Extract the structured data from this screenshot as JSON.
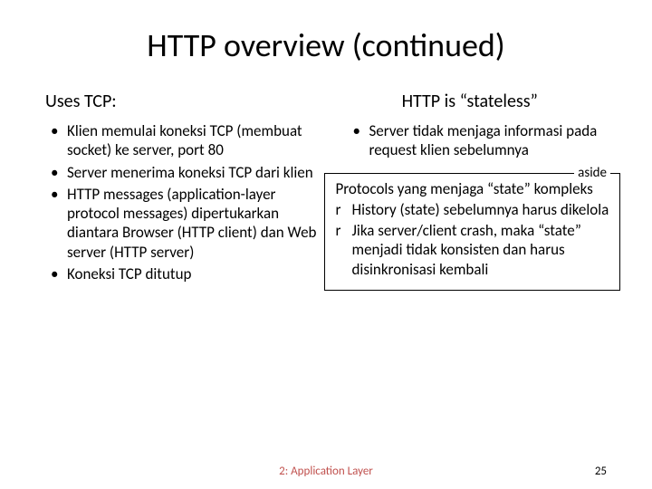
{
  "title": "HTTP overview (continued)",
  "left": {
    "heading": "Uses TCP:",
    "items": [
      "Klien memulai koneksi TCP (membuat socket) ke server, port 80",
      "Server menerima koneksi TCP dari klien",
      "HTTP messages (application-layer protocol messages) dipertukarkan diantara Browser (HTTP client) dan Web server (HTTP server)",
      "Koneksi TCP ditutup"
    ]
  },
  "right": {
    "heading": "HTTP is “stateless”",
    "items": [
      "Server tidak menjaga informasi pada request klien sebelumnya"
    ],
    "aside": {
      "label": "aside",
      "title": "Protocols yang menjaga “state” kompleks",
      "items": [
        "History (state) sebelumnya harus dikelola",
        "Jika server/client crash, maka “state” menjadi tidak konsisten dan harus disinkronisasi kembali"
      ]
    }
  },
  "footer": {
    "center": "2: Application Layer",
    "page": "25"
  }
}
